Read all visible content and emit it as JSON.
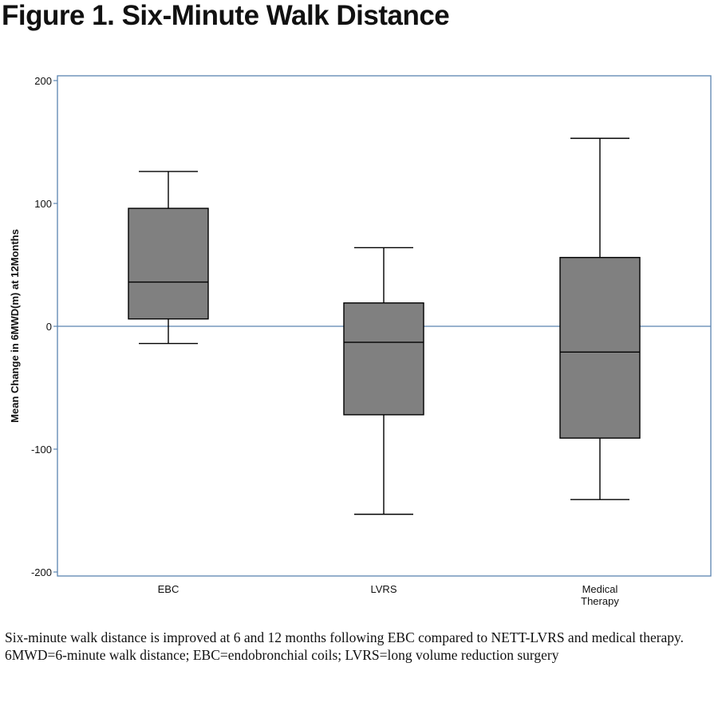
{
  "figure_title": "Figure 1. Six-Minute Walk Distance",
  "caption": {
    "line1": "Six-minute walk distance is improved at 6 and 12 months following EBC compared to NETT-LVRS and medical therapy.",
    "line2": "6MWD=6-minute walk distance; EBC=endobronchial coils; LVRS=long volume reduction surgery"
  },
  "colors": {
    "frame": "#5b84b1",
    "zero_line": "#5b84b1",
    "box_fill": "#808080",
    "box_stroke": "#000000"
  },
  "chart_data": {
    "type": "box",
    "title": "",
    "xlabel": "",
    "ylabel": "Mean Change in 6MWD(m) at 12Months",
    "ylim": [
      -200,
      200
    ],
    "yticks": [
      200,
      100,
      0,
      -100,
      -200
    ],
    "reference_line": 0,
    "grid": false,
    "categories": [
      {
        "label": [
          "EBC"
        ],
        "whisker_low": -14,
        "q1": 6,
        "median": 36,
        "q3": 96,
        "whisker_high": 126
      },
      {
        "label": [
          "LVRS"
        ],
        "whisker_low": -153,
        "q1": -72,
        "median": -13,
        "q3": 19,
        "whisker_high": 64
      },
      {
        "label": [
          "Medical",
          "Therapy"
        ],
        "whisker_low": -141,
        "q1": -91,
        "median": -21,
        "q3": 56,
        "whisker_high": 153
      }
    ]
  }
}
